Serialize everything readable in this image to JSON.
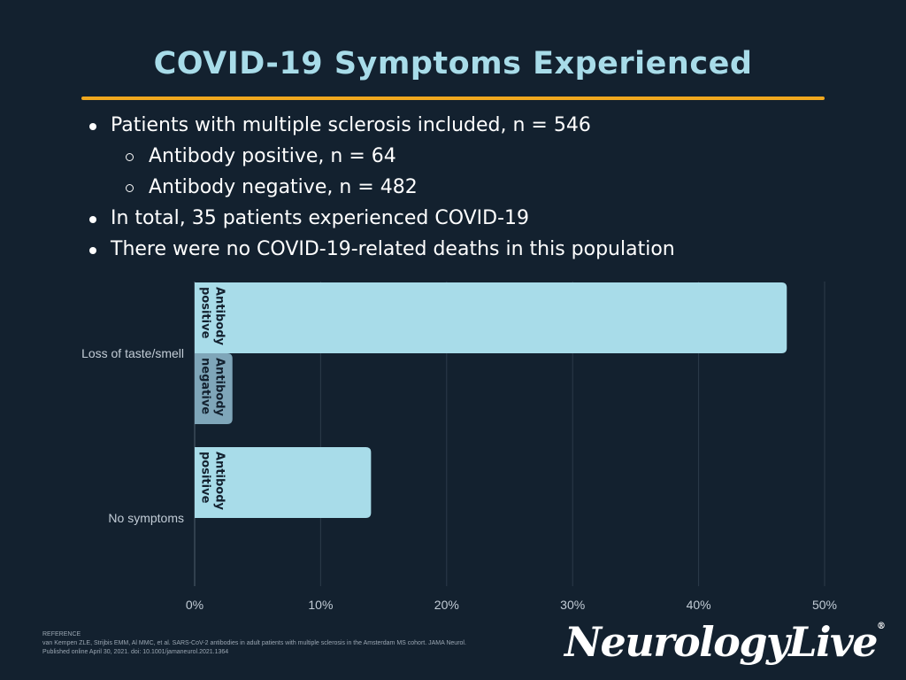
{
  "slide": {
    "title": "COVID-19 Symptoms Experienced",
    "bullets": [
      {
        "level": 1,
        "text": "Patients with multiple sclerosis included, n = 546"
      },
      {
        "level": 2,
        "text": "Antibody positive, n = 64"
      },
      {
        "level": 2,
        "text": "Antibody negative, n = 482"
      },
      {
        "level": 1,
        "text": "In total, 35 patients experienced COVID-19"
      },
      {
        "level": 1,
        "text": "There were no COVID-19-related deaths in this population"
      }
    ]
  },
  "chart_data": {
    "type": "bar",
    "orientation": "horizontal",
    "categories": [
      "Loss of taste/smell",
      "No symptoms"
    ],
    "series": [
      {
        "name": "Antibody positive",
        "label_lines": [
          "Antibody",
          "positive"
        ],
        "values": [
          47,
          14
        ],
        "color": "#a8dce9"
      },
      {
        "name": "Antibody negative",
        "label_lines": [
          "Antibody",
          "negative"
        ],
        "values": [
          3,
          null
        ],
        "color": "#7fa6b9"
      }
    ],
    "xlim": [
      0,
      50
    ],
    "xticks": [
      "0%",
      "10%",
      "20%",
      "30%",
      "40%",
      "50%"
    ],
    "xtick_values": [
      0,
      10,
      20,
      30,
      40,
      50
    ],
    "grid": true,
    "colors": {
      "grid": "#2c3b4a",
      "axis": "#4f5e6c",
      "tick_text": "#c2ccd6",
      "bar_text": "#13212f"
    }
  },
  "reference": {
    "heading": "REFERENCE",
    "lines": [
      "van Kempen ZLE, Strijbis EMM, Al MMC, et al. SARS-CoV-2 antibodies in adult patients with multiple sclerosis in the Amsterdam MS cohort. JAMA Neurol.",
      "Published online April 30, 2021. doi: 10.1001/jamaneurol.2021.1364"
    ]
  },
  "brand": {
    "name": "NeurologyLive",
    "mark": "®"
  }
}
